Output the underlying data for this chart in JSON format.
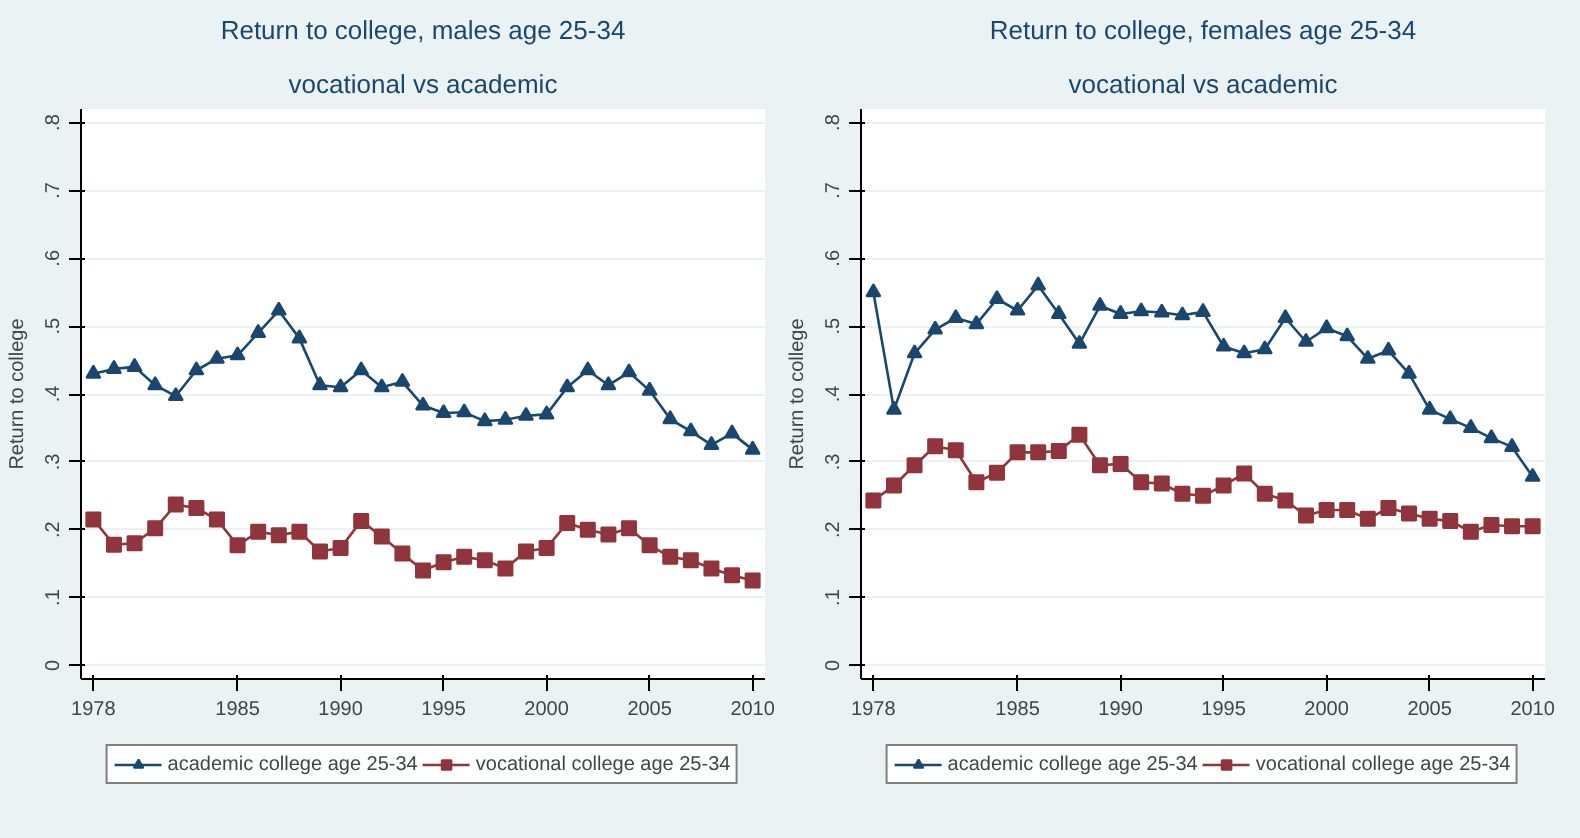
{
  "chart_data": [
    {
      "type": "line",
      "title": "Return to college, males age 25-34",
      "subtitle": "vocational vs academic",
      "ylabel": "Return to college",
      "x": [
        1978,
        1979,
        1980,
        1981,
        1982,
        1983,
        1984,
        1985,
        1986,
        1987,
        1988,
        1989,
        1990,
        1991,
        1992,
        1993,
        1994,
        1995,
        1996,
        1997,
        1998,
        1999,
        2000,
        2001,
        2002,
        2003,
        2004,
        2005,
        2006,
        2007,
        2008,
        2009,
        2010
      ],
      "series": [
        {
          "name": "academic college age 25-34",
          "color": "#1a476f",
          "marker": "triangle",
          "values": [
            0.43,
            0.437,
            0.44,
            0.413,
            0.397,
            0.435,
            0.452,
            0.457,
            0.49,
            0.523,
            0.482,
            0.413,
            0.41,
            0.435,
            0.41,
            0.418,
            0.383,
            0.372,
            0.373,
            0.36,
            0.362,
            0.368,
            0.37,
            0.41,
            0.435,
            0.413,
            0.432,
            0.405,
            0.363,
            0.345,
            0.325,
            0.342,
            0.318
          ]
        },
        {
          "name": "vocational college age 25-34",
          "color": "#90353b",
          "marker": "square",
          "values": [
            0.215,
            0.178,
            0.18,
            0.202,
            0.237,
            0.232,
            0.215,
            0.177,
            0.197,
            0.192,
            0.197,
            0.168,
            0.173,
            0.213,
            0.19,
            0.165,
            0.14,
            0.152,
            0.16,
            0.155,
            0.143,
            0.168,
            0.173,
            0.21,
            0.2,
            0.193,
            0.202,
            0.177,
            0.16,
            0.155,
            0.143,
            0.133,
            0.125
          ]
        }
      ],
      "xlim": [
        1977.4,
        2010.6
      ],
      "ylim": [
        -0.02,
        0.82
      ],
      "xticks": [
        1978,
        1985,
        1990,
        1995,
        2000,
        2005,
        2010
      ],
      "yticks": [
        0,
        {
          "value": 0.1,
          "label": ".1"
        },
        {
          "value": 0.2,
          "label": ".2"
        },
        {
          "value": 0.3,
          "label": ".3"
        },
        {
          "value": 0.4,
          "label": ".4"
        },
        {
          "value": 0.5,
          "label": ".5"
        },
        {
          "value": 0.6,
          "label": ".6"
        },
        {
          "value": 0.7,
          "label": ".7"
        },
        {
          "value": 0.8,
          "label": ".8"
        }
      ],
      "grid": "y",
      "legend": "bottom",
      "line_style": "solid"
    },
    {
      "type": "line",
      "title": "Return to college, females age 25-34",
      "subtitle": "vocational vs academic",
      "ylabel": "Return to college",
      "x": [
        1978,
        1979,
        1980,
        1981,
        1982,
        1983,
        1984,
        1985,
        1986,
        1987,
        1988,
        1989,
        1990,
        1991,
        1992,
        1993,
        1994,
        1995,
        1996,
        1997,
        1998,
        1999,
        2000,
        2001,
        2002,
        2003,
        2004,
        2005,
        2006,
        2007,
        2008,
        2009,
        2010
      ],
      "series": [
        {
          "name": "academic college age 25-34",
          "color": "#1a476f",
          "marker": "triangle",
          "values": [
            0.55,
            0.377,
            0.46,
            0.495,
            0.512,
            0.503,
            0.54,
            0.523,
            0.56,
            0.518,
            0.474,
            0.53,
            0.518,
            0.522,
            0.52,
            0.516,
            0.521,
            0.47,
            0.46,
            0.466,
            0.512,
            0.477,
            0.497,
            0.485,
            0.452,
            0.464,
            0.43,
            0.377,
            0.363,
            0.35,
            0.335,
            0.322,
            0.278
          ]
        },
        {
          "name": "vocational college age 25-34",
          "color": "#90353b",
          "marker": "square",
          "values": [
            0.243,
            0.265,
            0.295,
            0.323,
            0.317,
            0.27,
            0.284,
            0.314,
            0.314,
            0.316,
            0.34,
            0.295,
            0.297,
            0.27,
            0.268,
            0.253,
            0.25,
            0.265,
            0.283,
            0.253,
            0.243,
            0.221,
            0.229,
            0.229,
            0.216,
            0.232,
            0.224,
            0.216,
            0.213,
            0.197,
            0.207,
            0.205,
            0.205
          ]
        }
      ],
      "xlim": [
        1977.4,
        2010.6
      ],
      "ylim": [
        -0.02,
        0.82
      ],
      "xticks": [
        1978,
        1985,
        1990,
        1995,
        2000,
        2005,
        2010
      ],
      "yticks": [
        0,
        {
          "value": 0.1,
          "label": ".1"
        },
        {
          "value": 0.2,
          "label": ".2"
        },
        {
          "value": 0.3,
          "label": ".3"
        },
        {
          "value": 0.4,
          "label": ".4"
        },
        {
          "value": 0.5,
          "label": ".5"
        },
        {
          "value": 0.6,
          "label": ".6"
        },
        {
          "value": 0.7,
          "label": ".7"
        },
        {
          "value": 0.8,
          "label": ".8"
        }
      ],
      "grid": "y",
      "legend": "bottom",
      "line_style": "solid"
    }
  ]
}
